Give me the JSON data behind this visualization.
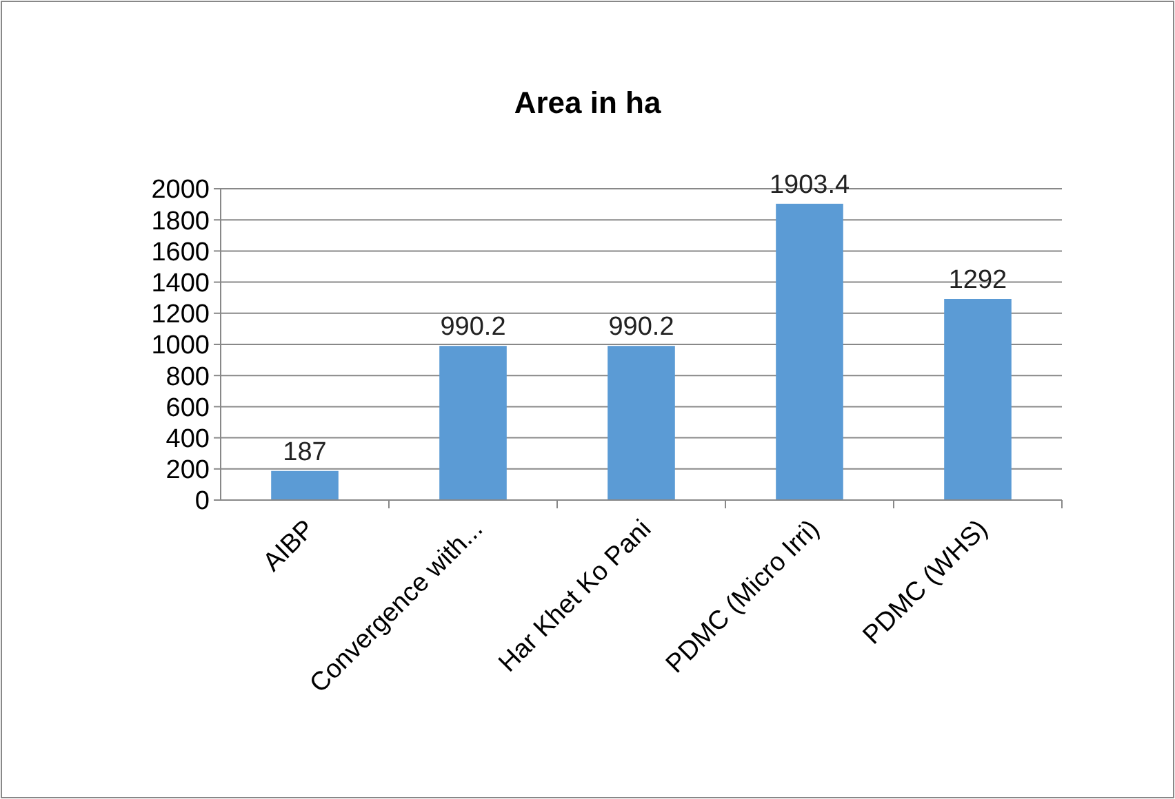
{
  "chart_data": {
    "type": "bar",
    "title": "Area in ha",
    "categories": [
      "AIBP",
      "Convergence with...",
      "Har Khet Ko Pani",
      "PDMC (Micro Irri)",
      "PDMC (WHS)"
    ],
    "values": [
      187,
      990.2,
      990.2,
      1903.4,
      1292
    ],
    "color": "#5b9bd5",
    "ylim": [
      0,
      2000
    ],
    "yticks": [
      0,
      200,
      400,
      600,
      800,
      1000,
      1200,
      1400,
      1600,
      1800,
      2000
    ],
    "grid": "y",
    "data_labels": true
  }
}
